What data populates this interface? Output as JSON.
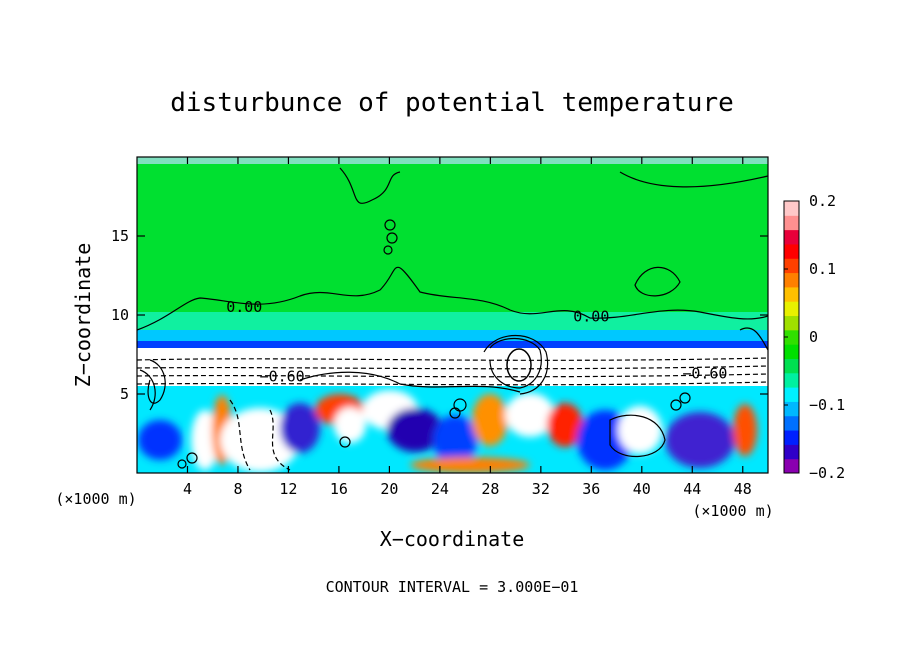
{
  "chart_data": {
    "type": "heatmap",
    "title": "disturbunce of potential temperature",
    "xlabel": "X−coordinate",
    "ylabel": "Z−coordinate",
    "x_unit_left": "(×1000 m)",
    "x_unit_right": "(×1000 m)",
    "xlim": [
      0,
      50
    ],
    "ylim": [
      0,
      20
    ],
    "x_ticks": [
      4,
      8,
      12,
      16,
      20,
      24,
      28,
      32,
      36,
      40,
      44,
      48
    ],
    "y_ticks": [
      5,
      10,
      15
    ],
    "colorbar": {
      "min": -0.2,
      "max": 0.2,
      "tick_values": [
        0.2,
        0.1,
        0,
        -0.1,
        -0.2
      ],
      "tick_labels": [
        "0.2",
        "0.1",
        "0",
        "−0.1",
        "−0.2"
      ],
      "colors": [
        "#8a00b0",
        "#3000c8",
        "#0020ff",
        "#0070ff",
        "#00b8ff",
        "#00f0ff",
        "#00f0a0",
        "#00e050",
        "#00e000",
        "#30e000",
        "#a0e000",
        "#e8f000",
        "#ffc000",
        "#ff8000",
        "#ff4000",
        "#ff0000",
        "#e8003a",
        "#ff9090",
        "#ffc8c8"
      ]
    },
    "contour_labels": [
      {
        "text": "0.00",
        "x": 8.5,
        "z": 10.5
      },
      {
        "text": "0.00",
        "x": 36.0,
        "z": 9.9
      },
      {
        "text": "−0.60",
        "x": 11.5,
        "z": 6.1
      },
      {
        "text": "−0.60",
        "x": 45.0,
        "z": 6.3
      }
    ],
    "footer": "CONTOUR INTERVAL = 3.000E−01"
  }
}
